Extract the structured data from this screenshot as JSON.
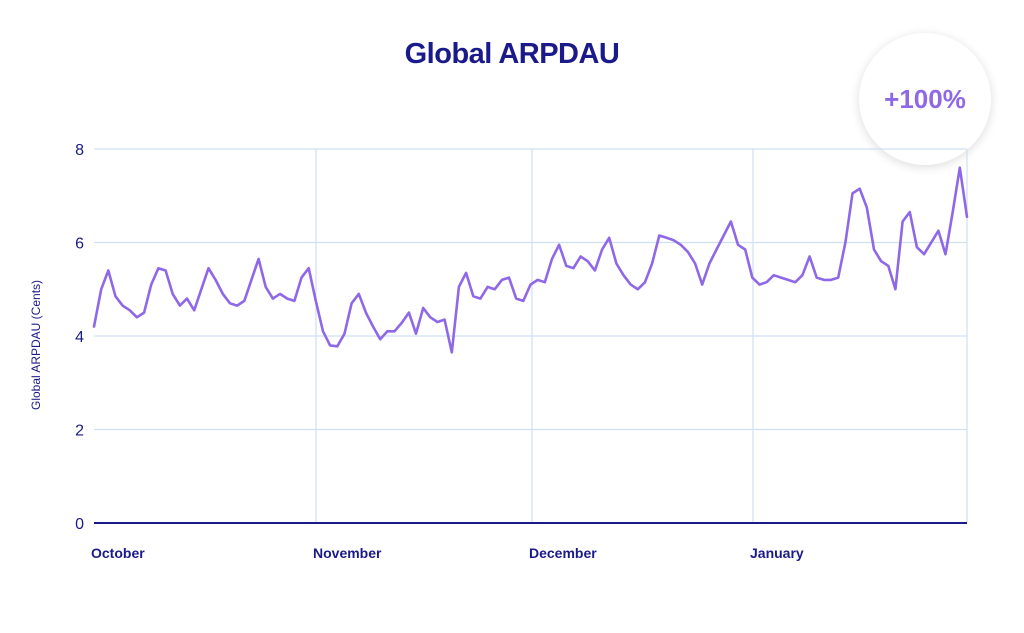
{
  "chart_data": {
    "type": "line",
    "title": "Global ARPDAU",
    "ylabel": "Global ARPDAU (Cents)",
    "xlabel": "",
    "ylim": [
      0,
      8
    ],
    "yticks": [
      0,
      2,
      4,
      6,
      8
    ],
    "grid": true,
    "x_tick_labels": [
      "October",
      "November",
      "December",
      "January"
    ],
    "annotation": "+100%",
    "line_color": "#8f68e8",
    "axis_color": "#1a1a8a",
    "grid_color": "#cfe0f5",
    "series": [
      {
        "values": [
          4.2,
          5.0,
          5.4,
          4.85,
          4.65,
          4.55,
          4.4,
          4.5,
          5.1,
          5.45,
          5.4,
          4.9,
          4.65,
          4.8,
          4.55,
          5.0,
          5.45,
          5.2,
          4.9,
          4.7,
          4.65,
          4.75,
          5.2,
          5.65,
          5.05,
          4.8,
          4.9,
          4.8,
          4.75,
          5.25,
          5.45,
          4.75,
          4.1,
          3.8,
          3.78,
          4.05,
          4.7,
          4.9,
          4.5,
          4.2,
          3.93,
          4.1,
          4.1,
          4.28,
          4.5,
          4.05,
          4.6,
          4.4,
          4.3,
          4.35,
          3.65,
          5.05,
          5.35,
          4.85,
          4.8,
          5.05,
          5.0,
          5.2,
          5.25,
          4.8,
          4.75,
          5.1,
          5.2,
          5.15,
          5.65,
          5.95,
          5.5,
          5.45,
          5.7,
          5.6,
          5.4,
          5.85,
          6.1,
          5.55,
          5.3,
          5.1,
          5.0,
          5.15,
          5.55,
          6.15,
          6.1,
          6.05,
          5.95,
          5.8,
          5.55,
          5.1,
          5.55,
          5.85,
          6.15,
          6.45,
          5.95,
          5.85,
          5.25,
          5.1,
          5.15,
          5.3,
          5.25,
          5.2,
          5.15,
          5.3,
          5.7,
          5.25,
          5.2,
          5.2,
          5.25,
          6.0,
          7.05,
          7.15,
          6.75,
          5.85,
          5.6,
          5.5,
          5.0,
          6.45,
          6.65,
          5.9,
          5.75,
          6.0,
          6.25,
          5.75,
          6.65,
          7.6,
          6.55
        ]
      }
    ]
  }
}
